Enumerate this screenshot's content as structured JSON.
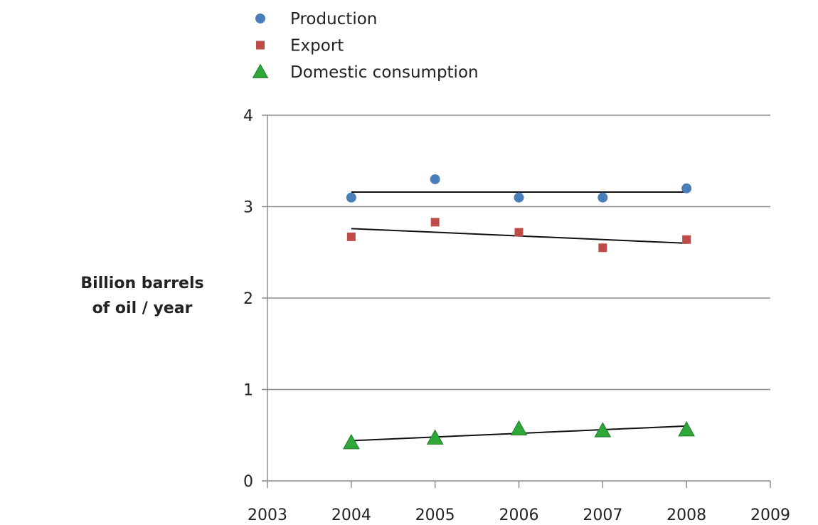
{
  "chart_data": {
    "type": "scatter",
    "title": "",
    "xlabel": "",
    "ylabel": [
      "Billion barrels",
      "of oil / year"
    ],
    "xlim": [
      2003,
      2009
    ],
    "ylim": [
      0,
      4
    ],
    "x_ticks": [
      "2003",
      "2004",
      "2005",
      "2006",
      "2007",
      "2008",
      "2009"
    ],
    "y_ticks": [
      "0",
      "1",
      "2",
      "3",
      "4"
    ],
    "grid": "horizontal",
    "legend_position": "top",
    "x": [
      2004,
      2005,
      2006,
      2007,
      2008
    ],
    "series": [
      {
        "name": "Production",
        "marker": "circle",
        "color": "#4a7ebb",
        "values": [
          3.1,
          3.3,
          3.1,
          3.1,
          3.2
        ],
        "trendline": [
          3.16,
          3.16
        ]
      },
      {
        "name": "Export",
        "marker": "square",
        "color": "#be4b48",
        "values": [
          2.67,
          2.83,
          2.72,
          2.55,
          2.64
        ],
        "trendline": [
          2.76,
          2.6
        ]
      },
      {
        "name": "Domestic consumption",
        "marker": "triangle",
        "color": "#2fa83a",
        "values": [
          0.42,
          0.47,
          0.57,
          0.55,
          0.56
        ],
        "trendline": [
          0.44,
          0.6
        ]
      }
    ]
  }
}
